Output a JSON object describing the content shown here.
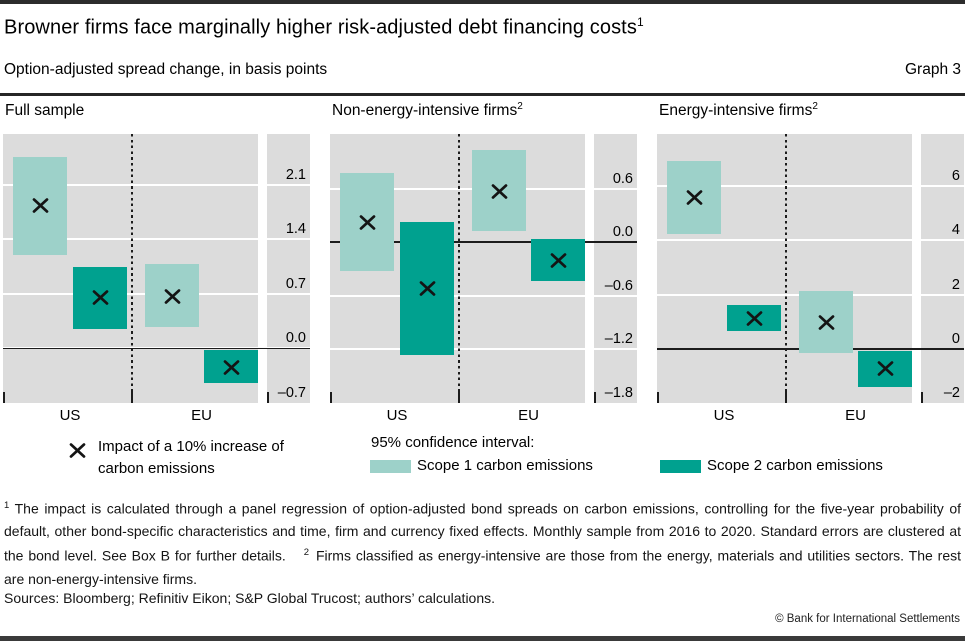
{
  "header": {
    "title": "Browner firms face marginally higher risk-adjusted debt financing costs",
    "title_sup": "1",
    "subtitle": "Option-adjusted spread change, in basis points",
    "graph_label": "Graph 3"
  },
  "colors": {
    "scope1": "#9dd1c9",
    "scope2": "#00a18f",
    "panel_bg": "#dcdcdc",
    "gridline": "#ffffff",
    "axis": "#1c1c1c",
    "frame_bar": "#3a3a3a"
  },
  "legend": {
    "impact_label": "Impact of a 10% increase of carbon emissions",
    "ci_title": "95% confidence interval:",
    "scope1_label": "Scope 1 carbon emissions",
    "scope2_label": "Scope 2 carbon emissions"
  },
  "footnotes": {
    "fn1_sup": "1",
    "fn1": "The impact is calculated through a panel regression of option-adjusted bond spreads on carbon emissions, controlling for the five-year probability of default, other bond-specific characteristics and time, firm and currency fixed effects. Monthly sample from 2016 to 2020. Standard errors are clustered at the bond level. See Box B for further details.",
    "fn2_sup": "2",
    "fn2": "Firms classified as energy-intensive are those from the energy, materials and utilities sectors. The rest are non-energy-intensive firms."
  },
  "sources": "Sources: Bloomberg; Refinitiv Eikon; S&P Global Trucost; authors’ calculations.",
  "copyright": "© Bank for International Settlements",
  "chart_data": [
    {
      "type": "bar",
      "subtype": "confidence-interval-range-with-point-marker",
      "title": "Full sample",
      "title_sup": "",
      "unit": "basis points",
      "categories": [
        "US",
        "EU"
      ],
      "ylim": [
        -0.7,
        2.75
      ],
      "yticks": [
        2.1,
        1.4,
        0.7,
        0.0,
        -0.7
      ],
      "ytick_labels": [
        "2.1",
        "1.4",
        "0.7",
        "0.0",
        "–0.7"
      ],
      "series": [
        {
          "name": "Scope 1 carbon emissions",
          "ci_low": [
            1.2,
            0.27
          ],
          "ci_high": [
            2.45,
            1.08
          ],
          "impact": [
            1.83,
            0.67
          ]
        },
        {
          "name": "Scope 2 carbon emissions",
          "ci_low": [
            0.25,
            -0.45
          ],
          "ci_high": [
            1.05,
            -0.02
          ],
          "impact": [
            0.65,
            -0.24
          ]
        }
      ]
    },
    {
      "type": "bar",
      "subtype": "confidence-interval-range-with-point-marker",
      "title": "Non-energy-intensive firms",
      "title_sup": "2",
      "unit": "basis points",
      "categories": [
        "US",
        "EU"
      ],
      "ylim": [
        -1.8,
        1.21
      ],
      "yticks": [
        0.6,
        0.0,
        -0.6,
        -1.2,
        -1.8
      ],
      "ytick_labels": [
        "0.6",
        "0.0",
        "–0.6",
        "–1.2",
        "–1.8"
      ],
      "series": [
        {
          "name": "Scope 1 carbon emissions",
          "ci_low": [
            -0.32,
            0.12
          ],
          "ci_high": [
            0.77,
            1.03
          ],
          "impact": [
            0.22,
            0.57
          ]
        },
        {
          "name": "Scope 2 carbon emissions",
          "ci_low": [
            -1.26,
            -0.43
          ],
          "ci_high": [
            0.23,
            0.03
          ],
          "impact": [
            -0.52,
            -0.2
          ]
        }
      ]
    },
    {
      "type": "bar",
      "subtype": "confidence-interval-range-with-point-marker",
      "title": "Energy-intensive firms",
      "title_sup": "2",
      "unit": "basis points",
      "categories": [
        "US",
        "EU"
      ],
      "ylim": [
        -2.0,
        7.93
      ],
      "yticks": [
        6,
        4,
        2,
        0,
        -2
      ],
      "ytick_labels": [
        "6",
        "4",
        "2",
        "0",
        "–2"
      ],
      "series": [
        {
          "name": "Scope 1 carbon emissions",
          "ci_low": [
            4.25,
            -0.15
          ],
          "ci_high": [
            6.95,
            2.12
          ],
          "impact": [
            5.6,
            0.98
          ]
        },
        {
          "name": "Scope 2 carbon emissions",
          "ci_low": [
            0.65,
            -1.4
          ],
          "ci_high": [
            1.62,
            -0.08
          ],
          "impact": [
            1.13,
            -0.74
          ]
        }
      ]
    }
  ]
}
